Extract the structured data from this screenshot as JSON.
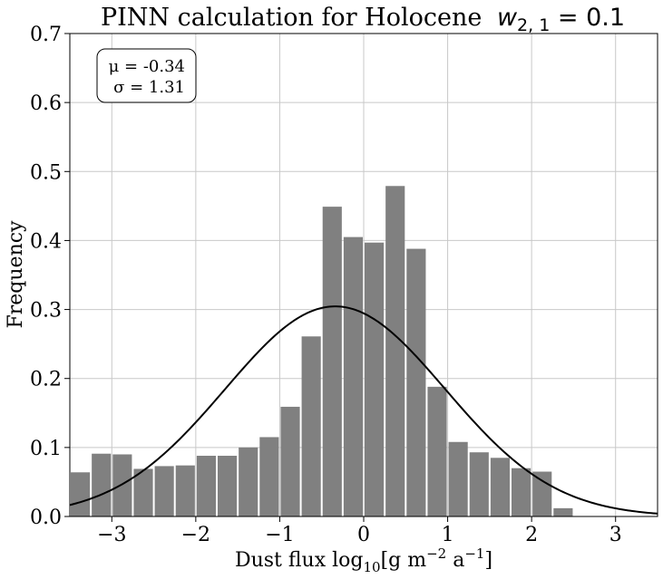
{
  "chart_data": {
    "type": "bar",
    "title": "PINN calculation for Holocene",
    "title_math": "w",
    "title_math_sub": "2, 1",
    "title_math_value": " = 0.1",
    "xlabel_prefix": "Dust flux log",
    "xlabel_base": "10",
    "xlabel_unit_open": "[g m",
    "xlabel_exp1": "−2",
    "xlabel_unit_mid": " a",
    "xlabel_exp2": "−1",
    "xlabel_unit_close": "]",
    "ylabel": "Frequency",
    "xlim": [
      -3.5,
      3.5
    ],
    "ylim": [
      0,
      0.7
    ],
    "xticks": [
      -3,
      -2,
      -1,
      0,
      1,
      2,
      3
    ],
    "xtick_labels": [
      "−3",
      "−2",
      "−1",
      "0",
      "1",
      "2",
      "3"
    ],
    "yticks": [
      0,
      0.1,
      0.2,
      0.3,
      0.4,
      0.5,
      0.6,
      0.7
    ],
    "ytick_labels": [
      "0.0",
      "0.1",
      "0.2",
      "0.3",
      "0.4",
      "0.5",
      "0.6",
      "0.7"
    ],
    "grid": true,
    "bin_edges": [
      -3.5,
      -3.25,
      -3.0,
      -2.75,
      -2.5,
      -2.25,
      -2.0,
      -1.75,
      -1.5,
      -1.25,
      -1.0,
      -0.75,
      -0.5,
      -0.25,
      0.0,
      0.25,
      0.5,
      0.75,
      1.0,
      1.25,
      1.5,
      1.75,
      2.0,
      2.25,
      2.5
    ],
    "values": [
      0.064,
      0.091,
      0.09,
      0.069,
      0.073,
      0.074,
      0.088,
      0.088,
      0.1,
      0.115,
      0.159,
      0.261,
      0.449,
      0.405,
      0.397,
      0.479,
      0.388,
      0.188,
      0.108,
      0.093,
      0.085,
      0.07,
      0.065,
      0.012
    ],
    "bar_color": "#808080",
    "fit_curve": {
      "type": "normal",
      "mu": -0.34,
      "sigma": 1.31,
      "color": "#000000"
    },
    "annotation": {
      "mu_label": "μ = -0.34",
      "sigma_label": "σ = 1.31",
      "position": "top-left"
    }
  }
}
